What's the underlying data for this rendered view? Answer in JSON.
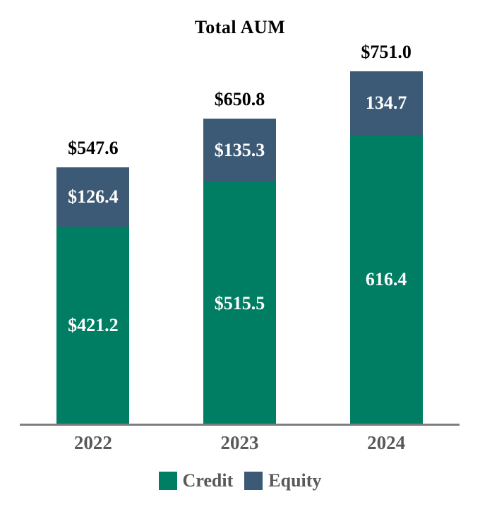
{
  "chart_data": {
    "type": "bar",
    "stacked": true,
    "title": "Total AUM",
    "categories": [
      "2022",
      "2023",
      "2024"
    ],
    "series": [
      {
        "name": "Credit",
        "color": "#007E64",
        "values": [
          421.2,
          515.5,
          616.4
        ],
        "labels": [
          "$421.2",
          "$515.5",
          "616.4"
        ]
      },
      {
        "name": "Equity",
        "color": "#3C5A76",
        "values": [
          126.4,
          135.3,
          134.7
        ],
        "labels": [
          "$126.4",
          "$135.3",
          "134.7"
        ]
      }
    ],
    "totals": [
      547.6,
      650.8,
      751.0
    ],
    "total_labels": [
      "$547.6",
      "$650.8",
      "$751.0"
    ],
    "ylim": [
      0,
      800
    ],
    "grid": false,
    "legend_position": "bottom",
    "colors": {
      "credit": "#007E64",
      "equity": "#3C5A76",
      "axis_line": "#7F7F7F",
      "category_text": "#595959",
      "legend_text": "#595959",
      "total_text": "#000000",
      "segment_text": "#FFFFFF"
    }
  }
}
